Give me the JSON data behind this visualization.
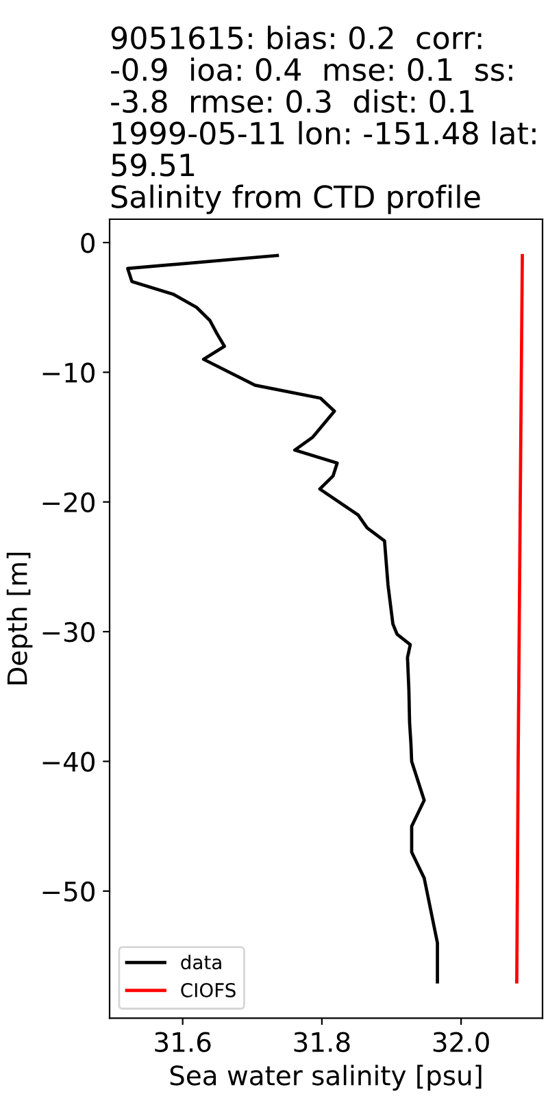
{
  "chart_data": {
    "type": "line",
    "title": "9051615: bias: 0.2  corr:\n-0.9  ioa: 0.4  mse: 0.1  ss:\n-3.8  rmse: 0.3  dist: 0.1\n1999-05-11 lon: -151.48 lat:\n59.51\nSalinity from CTD profile",
    "xlabel": "Sea water salinity [psu]",
    "ylabel": "Depth [m]",
    "series": [
      {
        "name": "data",
        "color": "#000000",
        "x": [
          31.736,
          31.521,
          31.527,
          31.587,
          31.62,
          31.639,
          31.649,
          31.66,
          31.63,
          31.704,
          31.798,
          31.818,
          31.787,
          31.761,
          31.822,
          31.816,
          31.797,
          31.852,
          31.865,
          31.89,
          31.895,
          31.902,
          31.908,
          31.927,
          31.923,
          31.925,
          31.926,
          31.928,
          31.929,
          31.947,
          31.929,
          31.929,
          31.947,
          31.966,
          31.966
        ],
        "values": [
          -1,
          -2,
          -3,
          -4,
          -5,
          -6,
          -7,
          -8,
          -9,
          -11,
          -12,
          -13,
          -15,
          -16,
          -17,
          -18,
          -19,
          -21,
          -22,
          -23,
          -26.4,
          -29.4,
          -30.2,
          -31,
          -32,
          -34.5,
          -37,
          -38.7,
          -40,
          -43,
          -45,
          -47,
          -49,
          -54,
          -57
        ]
      },
      {
        "name": "CIOFS",
        "color": "#ff0000",
        "x": [
          32.088,
          32.085,
          32.082,
          32.08
        ],
        "values": [
          -1,
          -20,
          -40,
          -57
        ]
      }
    ],
    "xlim": [
      31.495,
      32.117
    ],
    "xticks": [
      31.6,
      31.8,
      {
        "value": 32,
        "label": "32.0"
      }
    ],
    "ylim": [
      -59.8,
      1.8
    ],
    "yticks": [
      0,
      {
        "value": -10,
        "label": "−10"
      },
      {
        "value": -20,
        "label": "−20"
      },
      {
        "value": -30,
        "label": "−30"
      },
      {
        "value": -40,
        "label": "−40"
      },
      {
        "value": -50,
        "label": "−50"
      }
    ],
    "grid": false,
    "legend": "bottom left",
    "marker": "none",
    "line_style": "solid"
  }
}
